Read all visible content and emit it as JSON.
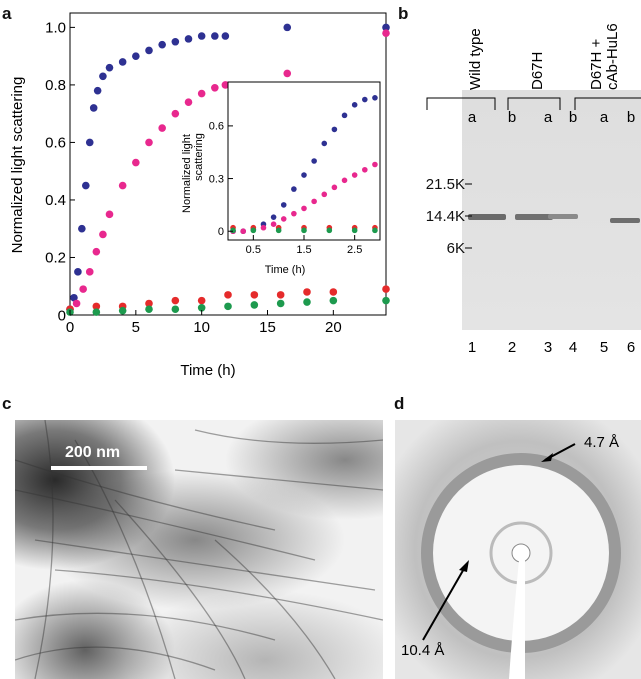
{
  "panels": {
    "a": "a",
    "b": "b",
    "c": "c",
    "d": "d"
  },
  "chart_data": [
    {
      "type": "scatter",
      "title": "",
      "xlabel": "Time (h)",
      "ylabel": "Normalized light scattering",
      "xlim": [
        0,
        24
      ],
      "ylim": [
        0,
        1.05
      ],
      "xticks": [
        "0",
        "5",
        "10",
        "15",
        "20"
      ],
      "yticks": [
        "0",
        "0.2",
        "0.4",
        "0.6",
        "0.8",
        "1.0"
      ],
      "grid": false,
      "series": [
        {
          "color": "#2e3192",
          "points": [
            [
              0,
              0.02
            ],
            [
              0.3,
              0.06
            ],
            [
              0.6,
              0.15
            ],
            [
              0.9,
              0.3
            ],
            [
              1.2,
              0.45
            ],
            [
              1.5,
              0.6
            ],
            [
              1.8,
              0.72
            ],
            [
              2.1,
              0.78
            ],
            [
              2.5,
              0.83
            ],
            [
              3,
              0.86
            ],
            [
              4,
              0.88
            ],
            [
              5,
              0.9
            ],
            [
              6,
              0.92
            ],
            [
              7,
              0.94
            ],
            [
              8,
              0.95
            ],
            [
              9,
              0.96
            ],
            [
              10,
              0.97
            ],
            [
              11,
              0.97
            ],
            [
              11.8,
              0.97
            ],
            [
              16.5,
              1.0
            ],
            [
              24,
              1.0
            ]
          ]
        },
        {
          "color": "#e8288e",
          "points": [
            [
              0,
              0.02
            ],
            [
              0.5,
              0.04
            ],
            [
              1,
              0.09
            ],
            [
              1.5,
              0.15
            ],
            [
              2,
              0.22
            ],
            [
              2.5,
              0.28
            ],
            [
              3,
              0.35
            ],
            [
              4,
              0.45
            ],
            [
              5,
              0.53
            ],
            [
              6,
              0.6
            ],
            [
              7,
              0.65
            ],
            [
              8,
              0.7
            ],
            [
              9,
              0.74
            ],
            [
              10,
              0.77
            ],
            [
              11,
              0.79
            ],
            [
              11.8,
              0.8
            ],
            [
              16.5,
              0.84
            ],
            [
              24,
              0.98
            ]
          ]
        },
        {
          "color": "#e52b2b",
          "points": [
            [
              0,
              0.02
            ],
            [
              2,
              0.03
            ],
            [
              4,
              0.03
            ],
            [
              6,
              0.04
            ],
            [
              8,
              0.05
            ],
            [
              10,
              0.05
            ],
            [
              12,
              0.07
            ],
            [
              14,
              0.07
            ],
            [
              16,
              0.07
            ],
            [
              18,
              0.08
            ],
            [
              20,
              0.08
            ],
            [
              24,
              0.09
            ]
          ]
        },
        {
          "color": "#1d9a4e",
          "points": [
            [
              0,
              0.01
            ],
            [
              2,
              0.01
            ],
            [
              4,
              0.015
            ],
            [
              6,
              0.02
            ],
            [
              8,
              0.02
            ],
            [
              10,
              0.025
            ],
            [
              12,
              0.03
            ],
            [
              14,
              0.035
            ],
            [
              16,
              0.04
            ],
            [
              18,
              0.045
            ],
            [
              20,
              0.05
            ],
            [
              24,
              0.05
            ]
          ]
        }
      ]
    },
    {
      "type": "scatter",
      "title": "",
      "xlabel": "Time (h)",
      "ylabel": "Normalized light scattering",
      "xlim": [
        0,
        3
      ],
      "ylim": [
        -0.05,
        0.85
      ],
      "xticks": [
        "0.5",
        "1.5",
        "2.5"
      ],
      "yticks": [
        "0",
        "0.3",
        "0.6"
      ],
      "grid": false,
      "series": [
        {
          "color": "#2e3192",
          "points": [
            [
              0.1,
              0.0
            ],
            [
              0.3,
              0.0
            ],
            [
              0.5,
              0.01
            ],
            [
              0.7,
              0.04
            ],
            [
              0.9,
              0.08
            ],
            [
              1.1,
              0.15
            ],
            [
              1.3,
              0.24
            ],
            [
              1.5,
              0.32
            ],
            [
              1.7,
              0.4
            ],
            [
              1.9,
              0.5
            ],
            [
              2.1,
              0.58
            ],
            [
              2.3,
              0.66
            ],
            [
              2.5,
              0.72
            ],
            [
              2.7,
              0.75
            ],
            [
              2.9,
              0.76
            ]
          ]
        },
        {
          "color": "#e8288e",
          "points": [
            [
              0.1,
              0.0
            ],
            [
              0.3,
              0.0
            ],
            [
              0.5,
              0.01
            ],
            [
              0.7,
              0.02
            ],
            [
              0.9,
              0.04
            ],
            [
              1.1,
              0.07
            ],
            [
              1.3,
              0.1
            ],
            [
              1.5,
              0.13
            ],
            [
              1.7,
              0.17
            ],
            [
              1.9,
              0.21
            ],
            [
              2.1,
              0.25
            ],
            [
              2.3,
              0.29
            ],
            [
              2.5,
              0.32
            ],
            [
              2.7,
              0.35
            ],
            [
              2.9,
              0.38
            ]
          ]
        },
        {
          "color": "#e52b2b",
          "points": [
            [
              0.1,
              0.02
            ],
            [
              0.5,
              0.02
            ],
            [
              1,
              0.02
            ],
            [
              1.5,
              0.02
            ],
            [
              2,
              0.02
            ],
            [
              2.5,
              0.02
            ],
            [
              2.9,
              0.02
            ]
          ]
        },
        {
          "color": "#1d9a4e",
          "points": [
            [
              0.1,
              0.005
            ],
            [
              0.5,
              0.005
            ],
            [
              1,
              0.005
            ],
            [
              1.5,
              0.005
            ],
            [
              2,
              0.005
            ],
            [
              2.5,
              0.005
            ],
            [
              2.9,
              0.005
            ]
          ]
        }
      ]
    }
  ],
  "gel": {
    "groups": [
      "Wild type",
      "D67H",
      "D67H +",
      "cAb-HuL6"
    ],
    "sub_labels": [
      "a",
      "b",
      "a",
      "b",
      "a",
      "b"
    ],
    "markers": [
      "21.5K",
      "14.4K",
      "6K"
    ],
    "lanes": [
      "1",
      "2",
      "3",
      "4",
      "5",
      "6"
    ]
  },
  "micrograph": {
    "scale_label": "200 nm"
  },
  "diffraction": {
    "outer_label": "4.7 Å",
    "inner_label": "10.4 Å"
  }
}
